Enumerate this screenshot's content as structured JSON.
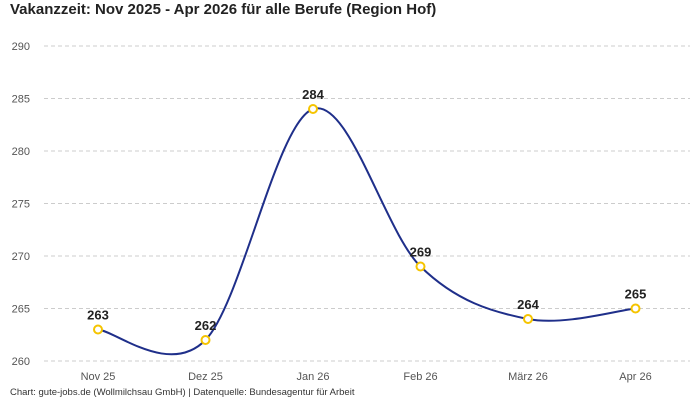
{
  "chart_data": {
    "type": "line",
    "title": "Vakanzzeit: Nov 2025 - Apr 2026 für alle Berufe (Region Hof)",
    "xlabel": "",
    "ylabel": "",
    "categories": [
      "Nov 25",
      "Dez 25",
      "Jan 26",
      "Feb 26",
      "März 26",
      "Apr 26"
    ],
    "series": [
      {
        "values": [
          263,
          262,
          284,
          269,
          264,
          265
        ]
      }
    ],
    "ylim": [
      260,
      290
    ],
    "yticks": [
      260,
      265,
      270,
      275,
      280,
      285,
      290
    ],
    "grid": true,
    "legend": "none",
    "data_labels": true,
    "line_color": "#1f2f8a",
    "marker_color": "#f5c400",
    "source": "Chart: gute-jobs.de (Wollmilchsau GmbH) | Datenquelle: Bundesagentur für Arbeit"
  }
}
